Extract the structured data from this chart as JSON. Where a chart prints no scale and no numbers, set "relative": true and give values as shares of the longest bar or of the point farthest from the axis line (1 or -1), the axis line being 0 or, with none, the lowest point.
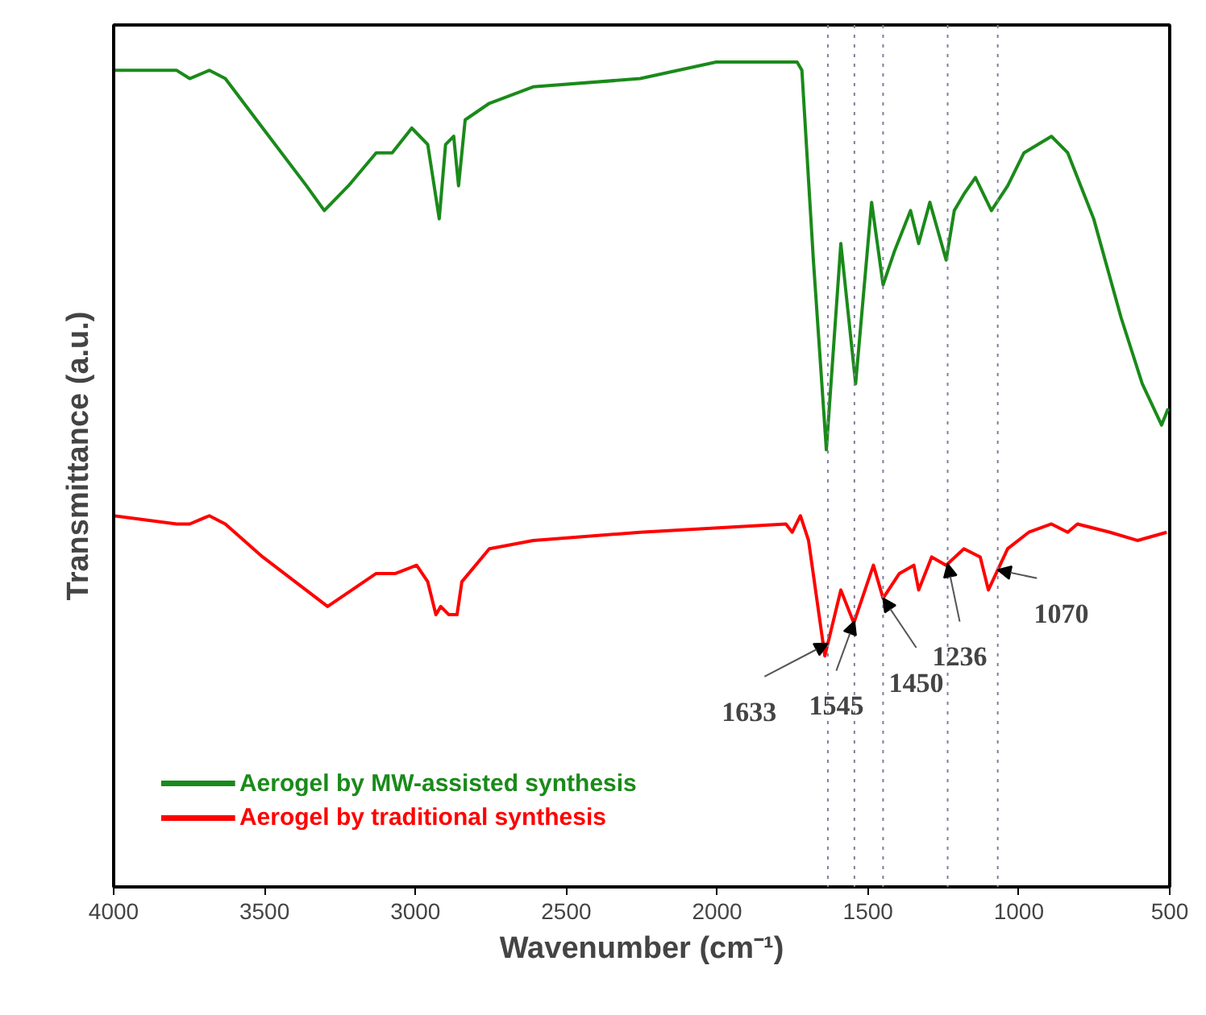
{
  "chart_data": {
    "type": "line",
    "relative": true,
    "xlabel": "Wavenumber (cm⁻¹)",
    "ylabel": "Transmittance (a.u.)",
    "xlim": [
      4000,
      500
    ],
    "xticks": [
      4000,
      3500,
      3000,
      2500,
      2000,
      1500,
      1000,
      500
    ],
    "legend": "bottom left",
    "grid": false,
    "x": [
      4000,
      3791,
      3748,
      3683,
      3630,
      3506,
      3361,
      3302,
      3222,
      3130,
      3077,
      3012,
      2959,
      2921,
      2900,
      2873,
      2857,
      2835,
      2755,
      2610,
      2255,
      2003,
      1735,
      1719,
      1681,
      1638,
      1590,
      1541,
      1488,
      1450,
      1413,
      1359,
      1332,
      1295,
      1241,
      1214,
      1182,
      1144,
      1091,
      1037,
      983,
      892,
      838,
      752,
      661,
      591,
      527,
      505
    ],
    "series": [
      {
        "name": "Aerogel by MW-assisted synthesis",
        "color": "#1a8a1a",
        "values": [
          0.99,
          0.99,
          0.98,
          0.99,
          0.98,
          0.92,
          0.85,
          0.82,
          0.85,
          0.89,
          0.89,
          0.92,
          0.9,
          0.81,
          0.9,
          0.91,
          0.85,
          0.93,
          0.95,
          0.97,
          0.98,
          1.0,
          1.0,
          0.99,
          0.76,
          0.53,
          0.78,
          0.61,
          0.83,
          0.73,
          0.77,
          0.82,
          0.78,
          0.83,
          0.76,
          0.82,
          0.84,
          0.86,
          0.82,
          0.85,
          0.89,
          0.91,
          0.89,
          0.81,
          0.69,
          0.61,
          0.56,
          0.58
        ]
      },
      {
        "name": "Aerogel by traditional synthesis",
        "color": "#ff0000",
        "x": [
          4000,
          3791,
          3748,
          3683,
          3630,
          3506,
          3291,
          3130,
          3066,
          2996,
          2959,
          2932,
          2916,
          2889,
          2862,
          2846,
          2755,
          2610,
          2255,
          1772,
          1751,
          1724,
          1697,
          1643,
          1590,
          1547,
          1482,
          1450,
          1396,
          1348,
          1332,
          1289,
          1241,
          1182,
          1128,
          1101,
          1037,
          967,
          892,
          838,
          806,
          698,
          607,
          510
        ],
        "values": [
          0.45,
          0.44,
          0.44,
          0.45,
          0.44,
          0.4,
          0.34,
          0.38,
          0.38,
          0.39,
          0.37,
          0.33,
          0.34,
          0.33,
          0.33,
          0.37,
          0.41,
          0.42,
          0.43,
          0.44,
          0.43,
          0.45,
          0.42,
          0.28,
          0.36,
          0.32,
          0.39,
          0.35,
          0.38,
          0.39,
          0.36,
          0.4,
          0.39,
          0.41,
          0.4,
          0.36,
          0.41,
          0.43,
          0.44,
          0.43,
          0.44,
          0.43,
          0.42,
          0.43
        ]
      }
    ],
    "ref_lines": [
      {
        "axis": "x",
        "value": 1633,
        "label": "1633",
        "color": "#7f7f9f",
        "line_style": "dotted"
      },
      {
        "axis": "x",
        "value": 1545,
        "label": "1545",
        "color": "#7f7f9f",
        "line_style": "dotted"
      },
      {
        "axis": "x",
        "value": 1450,
        "label": "1450",
        "color": "#7f7f9f",
        "line_style": "dotted"
      },
      {
        "axis": "x",
        "value": 1236,
        "label": "1236",
        "color": "#7f7f9f",
        "line_style": "dotted"
      },
      {
        "axis": "x",
        "value": 1070,
        "label": "1070",
        "color": "#7f7f9f",
        "line_style": "dotted"
      }
    ]
  }
}
